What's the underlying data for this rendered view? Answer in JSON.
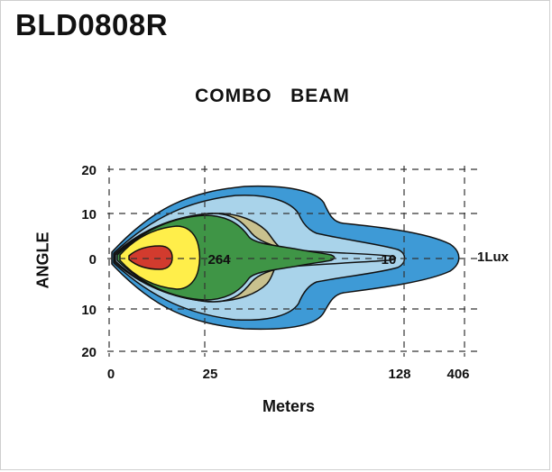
{
  "header": {
    "product": "BLD0808R"
  },
  "chart_data": {
    "type": "area",
    "title": "COMBO   BEAM",
    "xlabel": "Meters",
    "ylabel": "ANGLE",
    "x_ticks": [
      "0",
      "25",
      "128",
      "406"
    ],
    "y_ticks": [
      "20",
      "10",
      "0",
      "10",
      "20"
    ],
    "grid": true,
    "series": [
      {
        "name": "1Lux",
        "color": "#3e9ad6"
      },
      {
        "name": "",
        "color": "#a9d3ea"
      },
      {
        "name": "",
        "color": "#c9c18e"
      },
      {
        "name": "10",
        "color": "#a9d3ea"
      },
      {
        "name": "",
        "color": "#3f9546"
      },
      {
        "name": "264",
        "color": "#ffee4a"
      },
      {
        "name": "",
        "color": "#d23b2e"
      }
    ]
  }
}
